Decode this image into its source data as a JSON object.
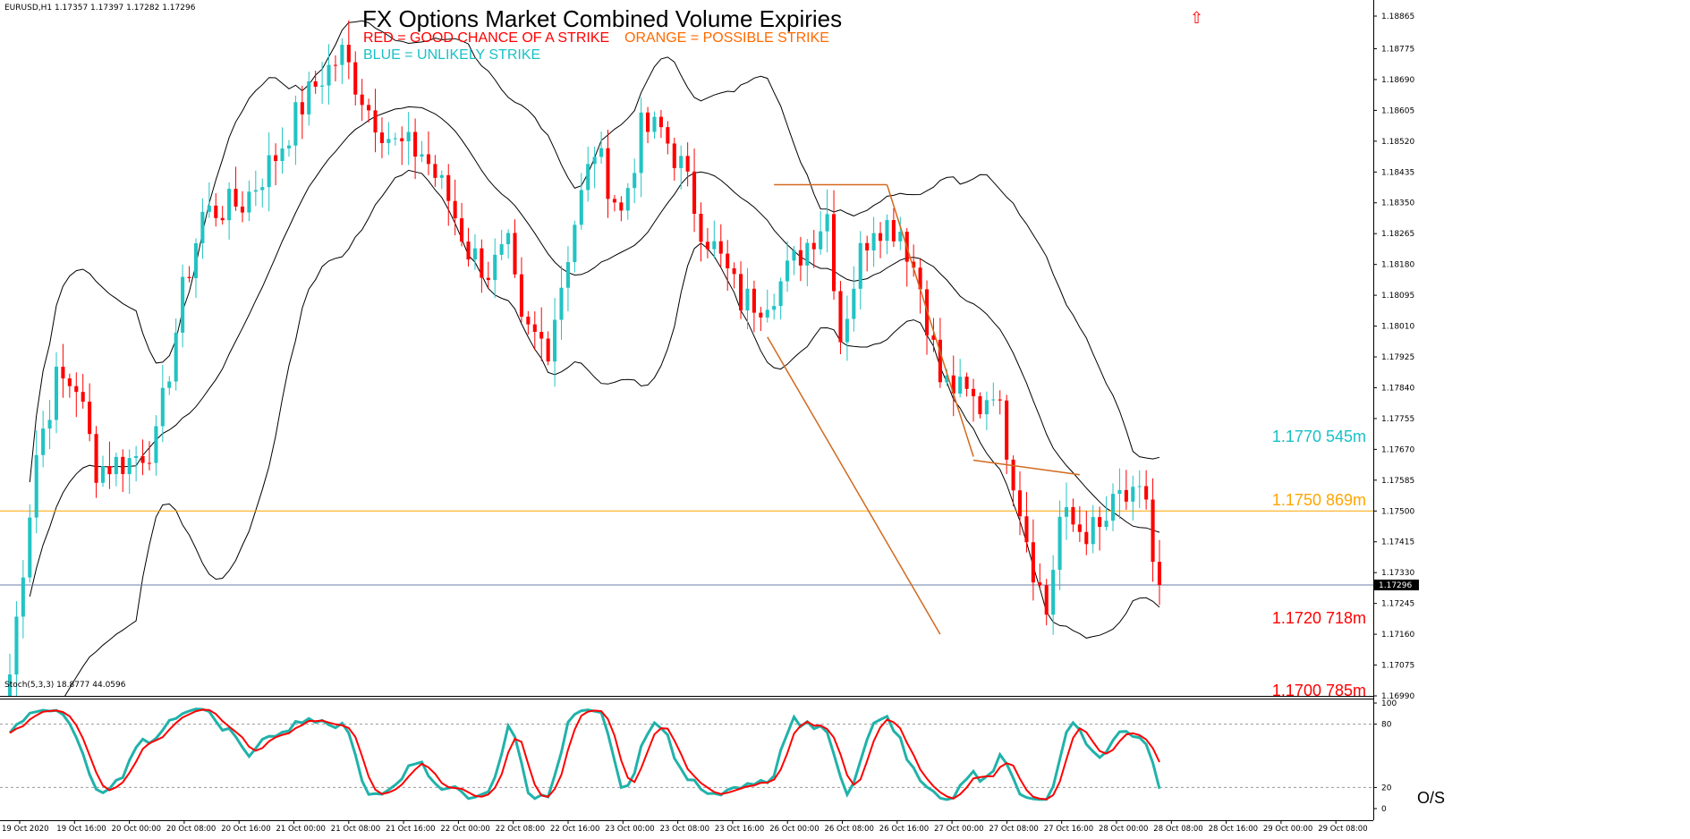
{
  "header": {
    "symbol": "EURUSD,H1  1.17357 1.17397 1.17282 1.17296",
    "title": "FX Options Market Combined Volume Expiries",
    "legend_red": "RED = GOOD CHANCE OF A STRIKE",
    "legend_orange": "ORANGE = POSSIBLE STRIKE",
    "legend_blue": "BLUE = UNLIKELY STRIKE",
    "arrow_glyph": "⇧"
  },
  "colors": {
    "bull": "#22c3c3",
    "bear": "#ff0000",
    "bands": "#000000",
    "trend": "#d2691e",
    "strike_red": "#ff0000",
    "strike_orange": "#ffa500",
    "strike_blue": "#19c1c7",
    "stoch_main": "#20b2aa",
    "stoch_signal": "#ff0000",
    "price_line": "#6b7fa8"
  },
  "strikes": [
    {
      "label": "1.1770 545m",
      "price": 1.177,
      "color": "#19c1c7",
      "line": false
    },
    {
      "label": "1.1750 869m",
      "price": 1.175,
      "color": "#ffa500",
      "line": true
    },
    {
      "label": "1.1720 718m",
      "price": 1.172,
      "color": "#ff0000",
      "line": false
    },
    {
      "label": "1.1700 785m",
      "price": 1.17,
      "color": "#ff0000",
      "line": false
    }
  ],
  "stoch_panel": {
    "header": "Stoch(5,3,3) 18.8777 44.0596",
    "levels": [
      "100",
      "80",
      "20",
      "0"
    ],
    "os_label": "O/S",
    "main_last": 18.8777,
    "signal_last": 44.0596
  },
  "chart_data": {
    "type": "candlestick",
    "symbol": "EURUSD",
    "timeframe": "H1",
    "last_price": "1.17296",
    "ylim": [
      1.1699,
      1.18865
    ],
    "y_ticks": [
      "1.18865",
      "1.18775",
      "1.18690",
      "1.18605",
      "1.18520",
      "1.18435",
      "1.18350",
      "1.18265",
      "1.18180",
      "1.18095",
      "1.18010",
      "1.17925",
      "1.17840",
      "1.17755",
      "1.17670",
      "1.17585",
      "1.17500",
      "1.17415",
      "1.17330",
      "1.17245",
      "1.17160",
      "1.17075",
      "1.16990"
    ],
    "x_ticks": [
      "19 Oct 2020",
      "19 Oct 16:00",
      "20 Oct 00:00",
      "20 Oct 08:00",
      "20 Oct 16:00",
      "21 Oct 00:00",
      "21 Oct 08:00",
      "21 Oct 16:00",
      "22 Oct 00:00",
      "22 Oct 08:00",
      "22 Oct 16:00",
      "23 Oct 00:00",
      "23 Oct 08:00",
      "23 Oct 16:00",
      "26 Oct 00:00",
      "26 Oct 08:00",
      "26 Oct 16:00",
      "27 Oct 00:00",
      "27 Oct 08:00",
      "27 Oct 16:00",
      "28 Oct 00:00",
      "28 Oct 08:00",
      "28 Oct 16:00",
      "29 Oct 00:00",
      "29 Oct 08:00"
    ],
    "close_anchors": [
      [
        0,
        1.1705
      ],
      [
        4,
        1.1766
      ],
      [
        7,
        1.1786
      ],
      [
        10,
        1.1785
      ],
      [
        13,
        1.1762
      ],
      [
        18,
        1.1764
      ],
      [
        22,
        1.1769
      ],
      [
        26,
        1.181
      ],
      [
        29,
        1.1832
      ],
      [
        35,
        1.1835
      ],
      [
        40,
        1.1848
      ],
      [
        44,
        1.1862
      ],
      [
        47,
        1.187
      ],
      [
        50,
        1.1876
      ],
      [
        54,
        1.1861
      ],
      [
        58,
        1.1851
      ],
      [
        62,
        1.1849
      ],
      [
        66,
        1.1836
      ],
      [
        69,
        1.1822
      ],
      [
        72,
        1.1816
      ],
      [
        75,
        1.1822
      ],
      [
        77,
        1.18
      ],
      [
        81,
        1.1796
      ],
      [
        85,
        1.183
      ],
      [
        88,
        1.185
      ],
      [
        92,
        1.1832
      ],
      [
        95,
        1.1855
      ],
      [
        98,
        1.1855
      ],
      [
        101,
        1.1845
      ],
      [
        104,
        1.1829
      ],
      [
        107,
        1.1819
      ],
      [
        110,
        1.1808
      ],
      [
        113,
        1.1808
      ],
      [
        116,
        1.1813
      ],
      [
        120,
        1.1824
      ],
      [
        123,
        1.1832
      ],
      [
        125,
        1.1798
      ],
      [
        128,
        1.1821
      ],
      [
        130,
        1.183
      ],
      [
        134,
        1.1828
      ],
      [
        137,
        1.1812
      ],
      [
        140,
        1.1786
      ],
      [
        142,
        1.1784
      ],
      [
        146,
        1.1779
      ],
      [
        148,
        1.1785
      ],
      [
        151,
        1.176
      ],
      [
        154,
        1.1735
      ],
      [
        156,
        1.1722
      ],
      [
        158,
        1.1748
      ],
      [
        161,
        1.1745
      ],
      [
        164,
        1.1744
      ],
      [
        167,
        1.1754
      ],
      [
        169,
        1.1752
      ],
      [
        171,
        1.1754
      ],
      [
        172,
        1.1736
      ],
      [
        173,
        1.17296
      ]
    ],
    "bollinger_bands": {
      "period": 20,
      "deviations": 2
    },
    "trend_lines": [
      {
        "from": [
          115,
          1.184
        ],
        "to": [
          132,
          1.184
        ]
      },
      {
        "from": [
          132,
          1.184
        ],
        "to": [
          145,
          1.1765
        ]
      },
      {
        "from": [
          114,
          1.1798
        ],
        "to": [
          140,
          1.1716
        ]
      },
      {
        "from": [
          145,
          1.1764
        ],
        "to": [
          161,
          1.176
        ]
      }
    ],
    "series": [
      {
        "name": "Stoch(5,3,3)",
        "last": 18.8777
      },
      {
        "name": "Signal",
        "last": 44.0596
      }
    ]
  }
}
